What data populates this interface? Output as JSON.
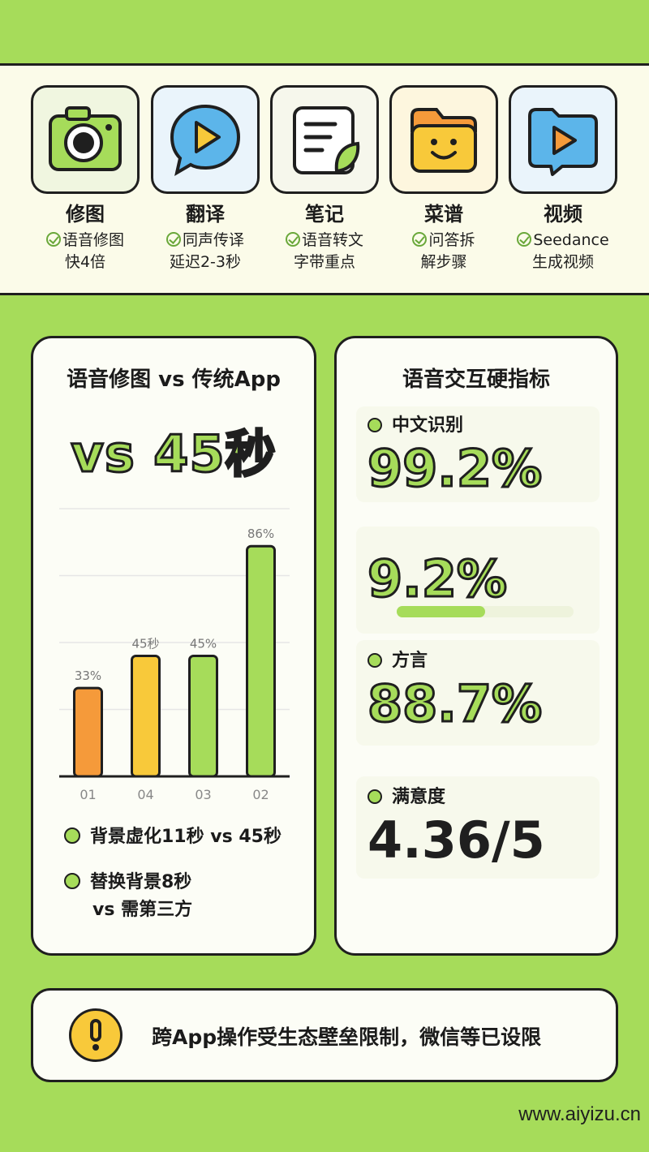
{
  "features": [
    {
      "title": "修图",
      "desc_line1": "语音修图",
      "desc_line2": "快4倍",
      "icon": "camera-icon",
      "box_color": "#f0f6e0"
    },
    {
      "title": "翻译",
      "desc_line1": "同声传译",
      "desc_line2": "延迟2-3秒",
      "icon": "chat-play-icon",
      "box_color": "#eaf4fb"
    },
    {
      "title": "笔记",
      "desc_line1": "语音转文",
      "desc_line2": "字带重点",
      "icon": "note-icon",
      "box_color": "#f6f7ec"
    },
    {
      "title": "菜谱",
      "desc_line1": "问答拆",
      "desc_line2": "解步骤",
      "icon": "smile-folder-icon",
      "box_color": "#fdf6de"
    },
    {
      "title": "视频",
      "desc_line1": "Seedance",
      "desc_line2": "生成视频",
      "icon": "video-play-icon",
      "box_color": "#eaf4fb"
    }
  ],
  "compare_card": {
    "title": "语音修图 vs 传统App",
    "big_text": "vs 45秒",
    "legend": [
      {
        "line1": "背景虚化11秒 vs 45秒",
        "line2": ""
      },
      {
        "line1": "替换背景8秒",
        "line2": "vs 需第三方"
      }
    ]
  },
  "chart_data": {
    "type": "bar",
    "categories": [
      "01",
      "04",
      "03",
      "02"
    ],
    "values": [
      33,
      45,
      45,
      86
    ],
    "data_labels": [
      "33%",
      "45秒",
      "45%",
      "86%"
    ],
    "colors": [
      "#f59a3a",
      "#f8c93a",
      "#a6dc5a",
      "#a6dc5a"
    ],
    "ylim": [
      0,
      100
    ],
    "grid": true,
    "title": "",
    "xlabel": "",
    "ylabel": ""
  },
  "metrics_card": {
    "title": "语音交互硬指标",
    "metrics": [
      {
        "label": "中文识别",
        "value": "99.2%"
      },
      {
        "label": "",
        "value": "9.2%",
        "progress": 0.5
      },
      {
        "label": "方言",
        "value": "88.7%"
      },
      {
        "label": "满意度",
        "value": "4.36/5"
      }
    ]
  },
  "warning": {
    "text": "跨App操作受生态壁垒限制，微信等已设限",
    "icon": "exclamation-icon"
  },
  "watermark": "www.aiyizu.cn",
  "colors": {
    "accent": "#a6dc5a",
    "outline": "#1f1f1f",
    "yellow": "#f8c93a",
    "orange": "#f59a3a"
  }
}
